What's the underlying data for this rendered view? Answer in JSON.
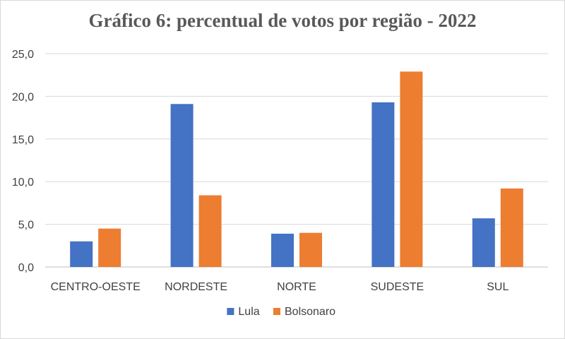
{
  "chart_data": {
    "type": "bar",
    "title": "Gráfico 6: percentual de votos por região - 2022",
    "categories": [
      "CENTRO-OESTE",
      "NORDESTE",
      "NORTE",
      "SUDESTE",
      "SUL"
    ],
    "series": [
      {
        "name": "Lula",
        "values": [
          3.0,
          19.1,
          3.9,
          19.3,
          5.7
        ],
        "color": "#4472c4"
      },
      {
        "name": "Bolsonaro",
        "values": [
          4.5,
          8.4,
          4.0,
          22.9,
          9.2
        ],
        "color": "#ed7d31"
      }
    ],
    "ylim": [
      0,
      25
    ],
    "yticks": [
      "0,0",
      "5,0",
      "10,0",
      "15,0",
      "20,0",
      "25,0"
    ],
    "grid": true,
    "legend_position": "bottom"
  }
}
